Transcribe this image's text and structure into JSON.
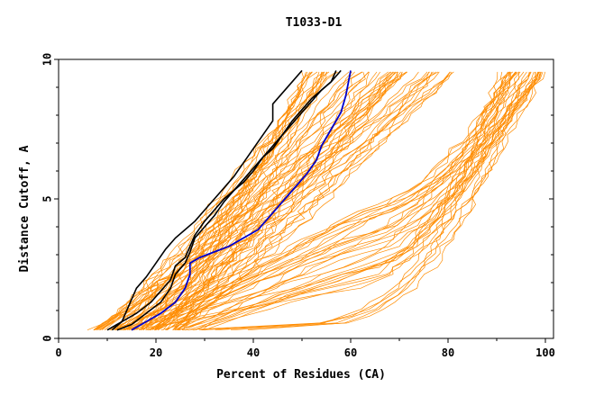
{
  "chart_data": {
    "type": "line",
    "title": "T1033-D1",
    "xlabel": "Percent of Residues (CA)",
    "ylabel": "Distance Cutoff, A",
    "xlim": [
      0,
      100
    ],
    "ylim": [
      0,
      10
    ],
    "x_ticks": [
      "0",
      "20",
      "40",
      "60",
      "80",
      "100"
    ],
    "y_ticks": [
      "0",
      "5",
      "10"
    ],
    "grid": false,
    "legend": "none",
    "colors": {
      "background_models": "#ff8c00",
      "highlight_models": "#000000",
      "reference_model": "#0000cc"
    },
    "highlight_series": [
      {
        "color": "#000000",
        "x": [
          11,
          13,
          14,
          15,
          16,
          18,
          20,
          22,
          24,
          26,
          28,
          30,
          32,
          34,
          36,
          38,
          40,
          42,
          44,
          44,
          46,
          48,
          50
        ],
        "y": [
          0.3,
          0.6,
          1.0,
          1.4,
          1.8,
          2.2,
          2.7,
          3.2,
          3.6,
          3.9,
          4.2,
          4.6,
          5.0,
          5.4,
          5.8,
          6.3,
          6.8,
          7.3,
          7.8,
          8.4,
          8.8,
          9.2,
          9.6
        ]
      },
      {
        "color": "#000000",
        "x": [
          10,
          13,
          16,
          19,
          21,
          23,
          24,
          26,
          27,
          28,
          30,
          32,
          34,
          36,
          38,
          40,
          42,
          44,
          46,
          48,
          50,
          52,
          54,
          56,
          57
        ],
        "y": [
          0.3,
          0.6,
          0.9,
          1.3,
          1.7,
          2.1,
          2.6,
          2.9,
          3.3,
          3.7,
          4.2,
          4.6,
          5.0,
          5.3,
          5.6,
          6.0,
          6.5,
          6.8,
          7.3,
          7.8,
          8.2,
          8.6,
          8.9,
          9.2,
          9.6
        ]
      },
      {
        "color": "#000000",
        "x": [
          12,
          15,
          18,
          21,
          23,
          24,
          26,
          27,
          28,
          30,
          32,
          34,
          36,
          38,
          40,
          42,
          44,
          46,
          48,
          50,
          52,
          54,
          56,
          58
        ],
        "y": [
          0.3,
          0.5,
          0.9,
          1.3,
          1.8,
          2.3,
          2.7,
          3.1,
          3.6,
          4.0,
          4.4,
          4.9,
          5.3,
          5.7,
          6.1,
          6.5,
          6.9,
          7.3,
          7.7,
          8.1,
          8.5,
          8.9,
          9.2,
          9.6
        ]
      }
    ],
    "reference_series": {
      "color": "#0000cc",
      "x": [
        15,
        18,
        21,
        24,
        26,
        27,
        27,
        29,
        32,
        35,
        38,
        41,
        43,
        45,
        47,
        49,
        51,
        53,
        54,
        56,
        58,
        59,
        60
      ],
      "y": [
        0.3,
        0.6,
        0.9,
        1.3,
        1.8,
        2.3,
        2.7,
        2.9,
        3.1,
        3.3,
        3.6,
        3.9,
        4.3,
        4.7,
        5.1,
        5.5,
        5.9,
        6.4,
        6.9,
        7.5,
        8.1,
        8.7,
        9.6
      ]
    },
    "background_groups": [
      {
        "count": 60,
        "x_start_min": 6,
        "x_start_max": 25,
        "x_end_min": 50,
        "x_end_max": 82,
        "shape": "steep"
      },
      {
        "count": 30,
        "x_start_min": 10,
        "x_start_max": 30,
        "x_end_min": 92,
        "x_end_max": 100,
        "shape": "knee"
      },
      {
        "count": 6,
        "x_start_min": 25,
        "x_start_max": 40,
        "x_end_min": 90,
        "x_end_max": 100,
        "shape": "flat"
      }
    ]
  }
}
